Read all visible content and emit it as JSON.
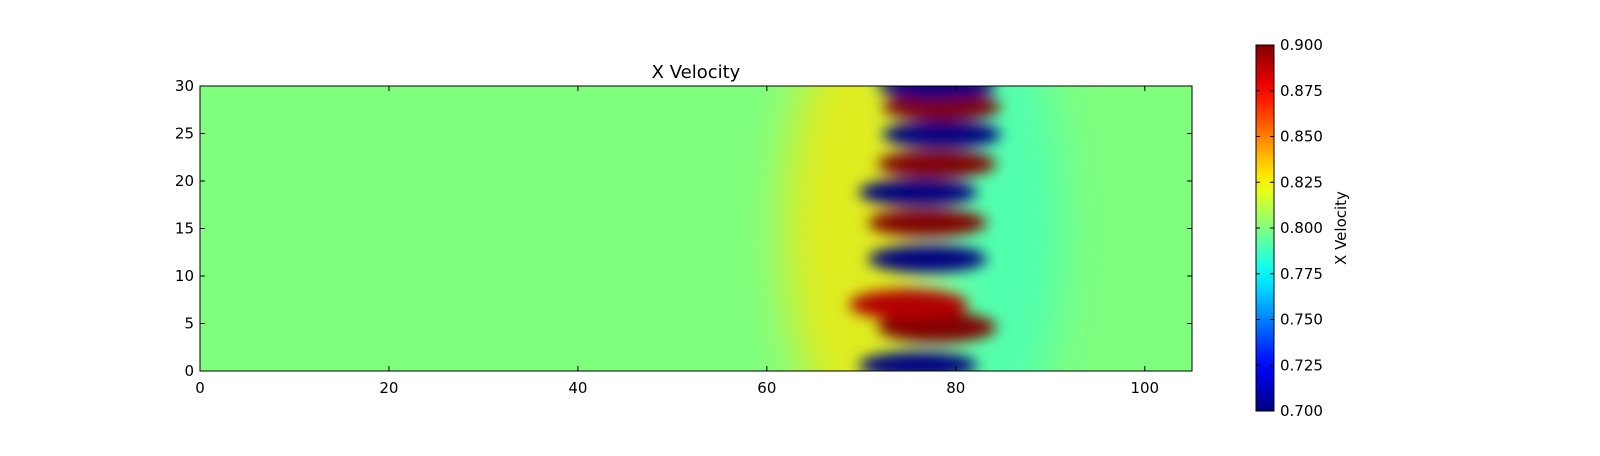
{
  "chart_data": {
    "type": "heatmap",
    "title": "X Velocity",
    "xlabel": "",
    "ylabel": "",
    "xlim": [
      0,
      105
    ],
    "ylim": [
      0,
      30
    ],
    "x_ticks": [
      0,
      20,
      40,
      60,
      80,
      100
    ],
    "y_ticks": [
      0,
      5,
      10,
      15,
      20,
      25,
      30
    ],
    "colormap": "jet",
    "background_value": 0.8,
    "colorbar": {
      "label": "X Velocity",
      "range": [
        0.7,
        0.9
      ],
      "ticks": [
        "0.700",
        "0.725",
        "0.750",
        "0.775",
        "0.800",
        "0.825",
        "0.850",
        "0.875",
        "0.900"
      ]
    },
    "features": [
      {
        "x_center": 76,
        "y_center": 0.6,
        "value": 0.7
      },
      {
        "x_center": 78,
        "y_center": 4.6,
        "value": 0.9
      },
      {
        "x_center": 75,
        "y_center": 7.0,
        "value": 0.89
      },
      {
        "x_center": 77,
        "y_center": 11.8,
        "value": 0.7
      },
      {
        "x_center": 77,
        "y_center": 15.6,
        "value": 0.9
      },
      {
        "x_center": 76,
        "y_center": 18.8,
        "value": 0.7
      },
      {
        "x_center": 78,
        "y_center": 21.8,
        "value": 0.9
      },
      {
        "x_center": 78.5,
        "y_center": 24.9,
        "value": 0.7
      },
      {
        "x_center": 78.5,
        "y_center": 27.8,
        "value": 0.9
      },
      {
        "x_center": 78,
        "y_center": 30.0,
        "value": 0.7
      }
    ]
  }
}
